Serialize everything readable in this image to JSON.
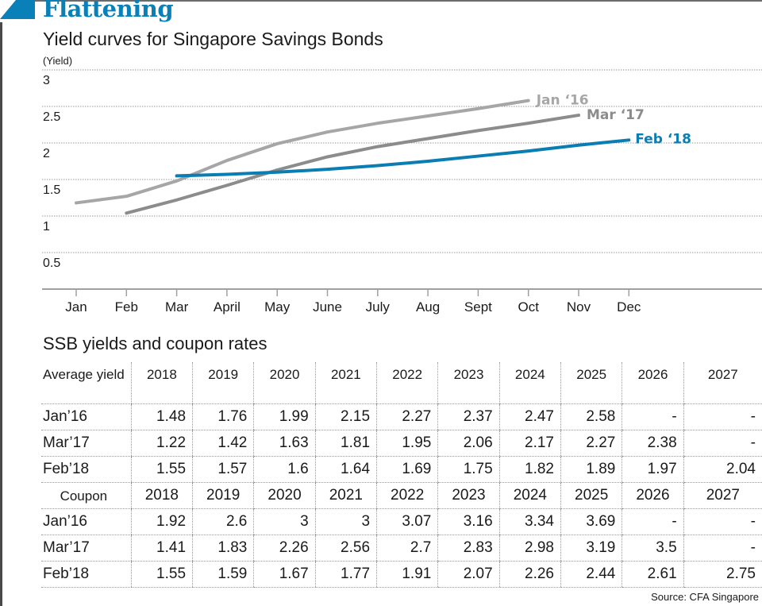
{
  "header": {
    "headline": "Flattening",
    "subtitle": "Yield curves for Singapore Savings Bonds",
    "accent_color": "#0a80b8"
  },
  "chart_data": {
    "type": "line",
    "title": "Yield curves for Singapore Savings Bonds",
    "xlabel": "",
    "ylabel": "(Yield)",
    "ylim": [
      0,
      3
    ],
    "yticks": [
      0.5,
      1,
      1.5,
      2,
      2.5,
      3
    ],
    "ytick_labels": [
      "0.5",
      "1",
      "1.5",
      "2",
      "2.5",
      "3"
    ],
    "grid": true,
    "categories": [
      "Jan",
      "Feb",
      "Mar",
      "April",
      "May",
      "June",
      "July",
      "Aug",
      "Sept",
      "Oct",
      "Nov",
      "Dec"
    ],
    "legend": "inline-labels-at-line-ends",
    "series": [
      {
        "name": "Jan ‘16",
        "color": "#a6a6a6",
        "values": [
          1.18,
          1.27,
          1.48,
          1.76,
          1.99,
          2.15,
          2.27,
          2.37,
          2.47,
          2.58,
          null,
          null
        ]
      },
      {
        "name": "Mar ‘17",
        "color": "#8c8c8c",
        "values": [
          null,
          1.04,
          1.22,
          1.42,
          1.63,
          1.81,
          1.95,
          2.06,
          2.17,
          2.27,
          2.38,
          null
        ]
      },
      {
        "name": "Feb ‘18",
        "color": "#0a7db3",
        "values": [
          null,
          null,
          1.55,
          1.57,
          1.6,
          1.64,
          1.69,
          1.75,
          1.82,
          1.89,
          1.97,
          2.04
        ]
      }
    ]
  },
  "table": {
    "title": "SSB yields and coupon rates",
    "yield_header": "Average yield",
    "coupon_header": "Coupon",
    "years": [
      "2018",
      "2019",
      "2020",
      "2021",
      "2022",
      "2023",
      "2024",
      "2025",
      "2026",
      "2027"
    ],
    "yields": [
      {
        "label": "Jan’16",
        "values": [
          "1.48",
          "1.76",
          "1.99",
          "2.15",
          "2.27",
          "2.37",
          "2.47",
          "2.58",
          "-",
          "-"
        ]
      },
      {
        "label": "Mar’17",
        "values": [
          "1.22",
          "1.42",
          "1.63",
          "1.81",
          "1.95",
          "2.06",
          "2.17",
          "2.27",
          "2.38",
          "-"
        ]
      },
      {
        "label": "Feb’18",
        "values": [
          "1.55",
          "1.57",
          "1.6",
          "1.64",
          "1.69",
          "1.75",
          "1.82",
          "1.89",
          "1.97",
          "2.04"
        ]
      }
    ],
    "coupons": [
      {
        "label": "Jan’16",
        "values": [
          "1.92",
          "2.6",
          "3",
          "3",
          "3.07",
          "3.16",
          "3.34",
          "3.69",
          "-",
          "-"
        ]
      },
      {
        "label": "Mar’17",
        "values": [
          "1.41",
          "1.83",
          "2.26",
          "2.56",
          "2.7",
          "2.83",
          "2.98",
          "3.19",
          "3.5",
          "-"
        ]
      },
      {
        "label": "Feb’18",
        "values": [
          "1.55",
          "1.59",
          "1.67",
          "1.77",
          "1.91",
          "2.07",
          "2.26",
          "2.44",
          "2.61",
          "2.75"
        ]
      }
    ]
  },
  "footer": {
    "source": "Source: CFA Singapore"
  }
}
